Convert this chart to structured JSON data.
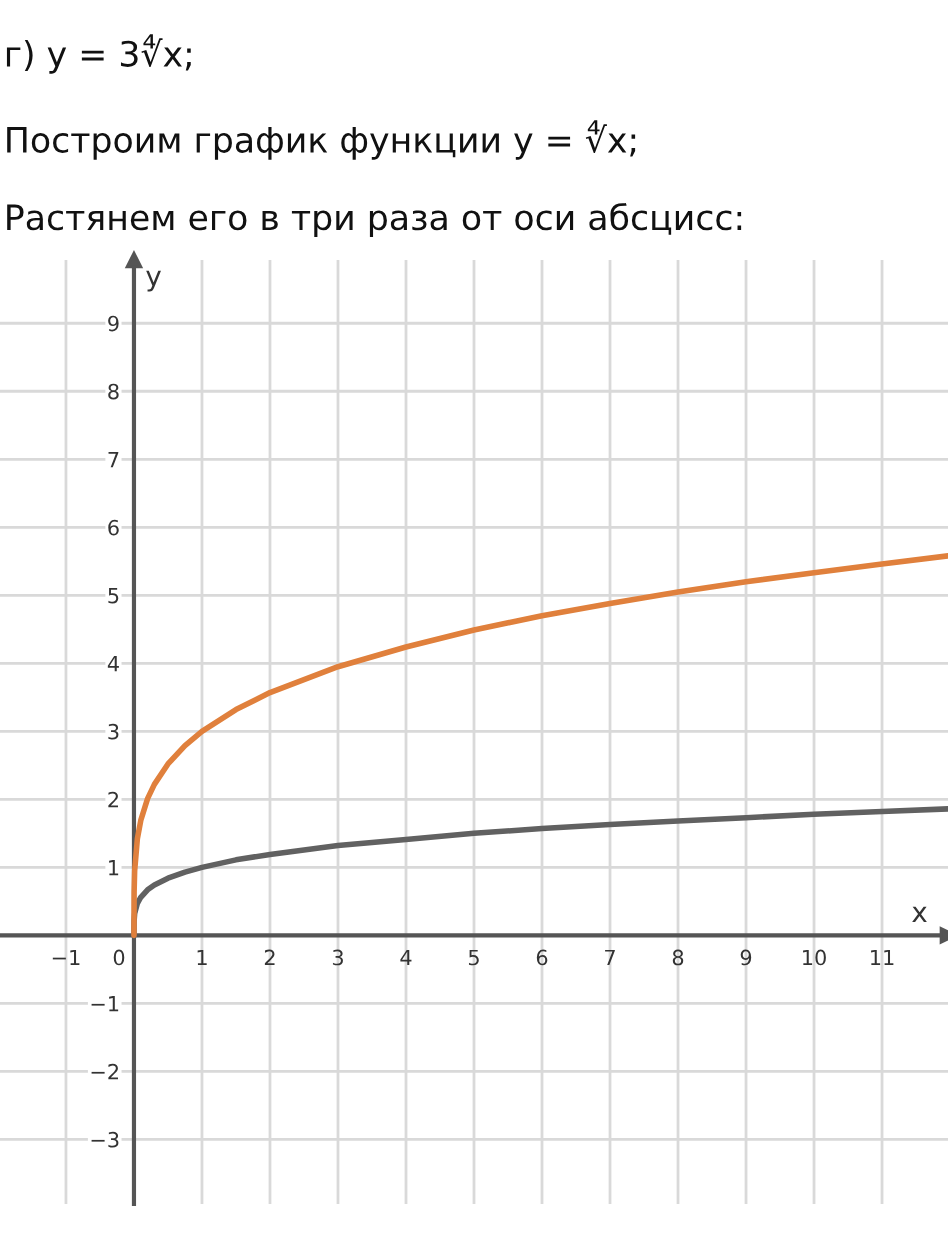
{
  "chart_data": {
    "type": "line",
    "title": "г) y = 3∜x;",
    "subtitle": "Построим график функции y = ∜x;",
    "annotations": [
      "Растянем его в три раза от оси абсцисс:"
    ],
    "xlabel": "x",
    "ylabel": "y",
    "xlim": [
      -1.97,
      11.97
    ],
    "ylim": [
      -3.95,
      9.93
    ],
    "xticks": [
      {
        "value": -1,
        "label": "−1"
      },
      0,
      1,
      2,
      3,
      4,
      5,
      6,
      7,
      8,
      9,
      10,
      11
    ],
    "yticks": [
      {
        "value": -3,
        "label": "−3"
      },
      {
        "value": -2,
        "label": "−2"
      },
      {
        "value": -1,
        "label": "−1"
      },
      1,
      2,
      3,
      4,
      5,
      6,
      7,
      8,
      9
    ],
    "grid": true,
    "series": [
      {
        "color": "#616161",
        "x": [
          0,
          0.002,
          0.01,
          0.05,
          0.1,
          0.2,
          0.3,
          0.5,
          0.75,
          1,
          1.5,
          2,
          3,
          4,
          5,
          6,
          7,
          8,
          9,
          10,
          11,
          11.97
        ],
        "values": [
          0,
          0.21,
          0.32,
          0.47,
          0.56,
          0.67,
          0.74,
          0.84,
          0.93,
          1,
          1.11,
          1.19,
          1.32,
          1.41,
          1.5,
          1.57,
          1.63,
          1.68,
          1.73,
          1.78,
          1.82,
          1.86
        ]
      },
      {
        "color": "#e0803c",
        "x": [
          0,
          0.002,
          0.01,
          0.05,
          0.1,
          0.2,
          0.3,
          0.5,
          0.75,
          1,
          1.5,
          2,
          3,
          4,
          5,
          6,
          7,
          8,
          9,
          10,
          11,
          11.97
        ],
        "values": [
          0,
          0.63,
          0.95,
          1.42,
          1.69,
          2.01,
          2.22,
          2.52,
          2.79,
          3,
          3.32,
          3.57,
          3.95,
          4.24,
          4.49,
          4.7,
          4.88,
          5.05,
          5.2,
          5.33,
          5.46,
          5.58
        ]
      }
    ]
  }
}
